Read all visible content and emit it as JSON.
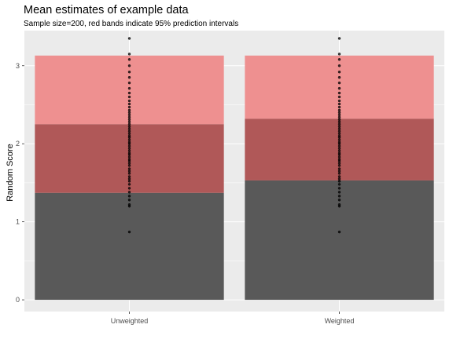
{
  "chart_data": {
    "type": "bar",
    "title": "Mean estimates of example data",
    "subtitle": "Sample size=200, red bands indicate 95% prediction intervals",
    "xlabel": "",
    "ylabel": "Random Score",
    "categories": [
      "Unweighted",
      "Weighted"
    ],
    "means": [
      1.37,
      1.53
    ],
    "interval_lower": [
      1.37,
      1.53
    ],
    "interval_middle": [
      2.25,
      2.32
    ],
    "interval_upper": [
      3.13,
      3.13
    ],
    "y_ticks": [
      0,
      1,
      2,
      3
    ],
    "ylim": [
      -0.15,
      3.45
    ],
    "grid": true,
    "points": [
      [
        0.87,
        1.2,
        1.22,
        1.28,
        1.33,
        1.38,
        1.43,
        1.48,
        1.52,
        1.55,
        1.58,
        1.62,
        1.65,
        1.68,
        1.72,
        1.75,
        1.78,
        1.8,
        1.83,
        1.86,
        1.88,
        1.91,
        1.94,
        1.97,
        2.0,
        2.02,
        2.05,
        2.08,
        2.1,
        2.13,
        2.16,
        2.19,
        2.22,
        2.25,
        2.28,
        2.31,
        2.34,
        2.37,
        2.4,
        2.43,
        2.47,
        2.51,
        2.55,
        2.6,
        2.65,
        2.71,
        2.78,
        2.85,
        2.92,
        3.0,
        3.08,
        3.15,
        3.35
      ],
      [
        0.87,
        1.2,
        1.22,
        1.28,
        1.33,
        1.38,
        1.43,
        1.48,
        1.52,
        1.55,
        1.58,
        1.62,
        1.65,
        1.68,
        1.72,
        1.75,
        1.78,
        1.8,
        1.83,
        1.86,
        1.88,
        1.91,
        1.94,
        1.97,
        2.0,
        2.02,
        2.05,
        2.08,
        2.1,
        2.13,
        2.16,
        2.19,
        2.22,
        2.25,
        2.28,
        2.31,
        2.34,
        2.37,
        2.4,
        2.43,
        2.47,
        2.51,
        2.55,
        2.6,
        2.65,
        2.71,
        2.78,
        2.85,
        2.92,
        3.0,
        3.08,
        3.15,
        3.35
      ]
    ],
    "colors": {
      "panel_bg": "#EBEBEB",
      "grid": "#FFFFFF",
      "bar": "#595959",
      "band_outer": "#EE9090",
      "band_inner": "#B05858",
      "points": "#000000",
      "tick_text": "#4D4D4D"
    }
  }
}
